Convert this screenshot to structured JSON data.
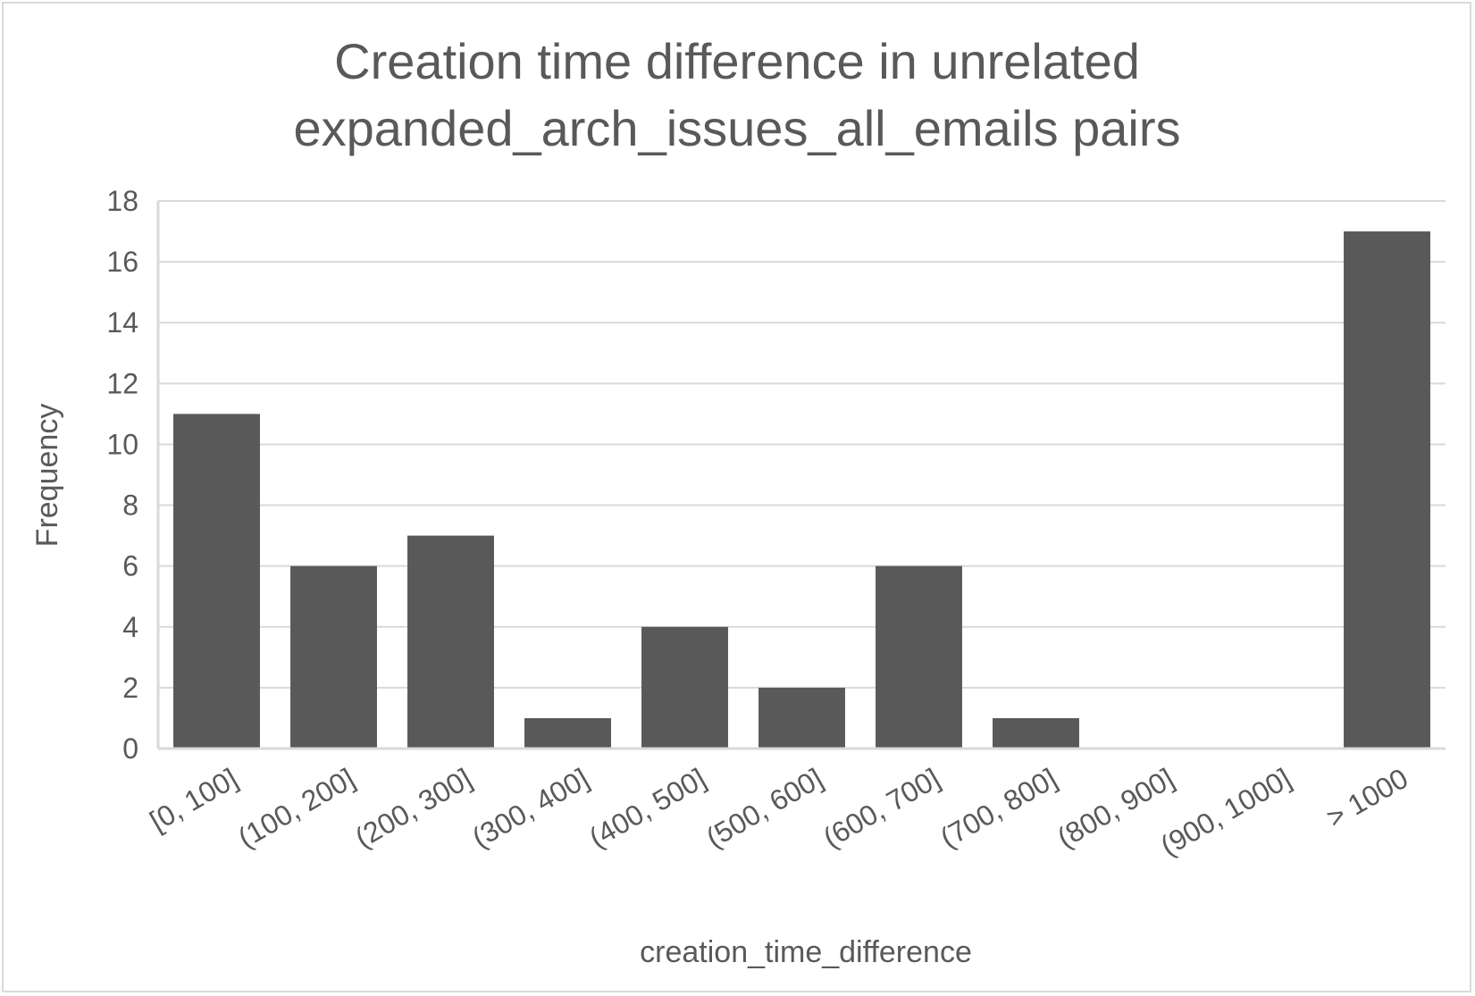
{
  "chart_data": {
    "type": "bar",
    "title_lines": [
      "Creation time difference in unrelated",
      "expanded_arch_issues_all_emails pairs"
    ],
    "xlabel": "creation_time_difference",
    "ylabel": "Frequency",
    "categories": [
      "[0, 100]",
      "(100, 200]",
      "(200, 300]",
      "(300, 400]",
      "(400, 500]",
      "(500, 600]",
      "(600, 700]",
      "(700, 800]",
      "(800, 900]",
      "(900, 1000]",
      "> 1000"
    ],
    "values": [
      11,
      6,
      7,
      1,
      4,
      2,
      6,
      1,
      0,
      0,
      17
    ],
    "ylim": [
      0,
      18
    ],
    "yticks": [
      0,
      2,
      4,
      6,
      8,
      10,
      12,
      14,
      16,
      18
    ],
    "grid": true,
    "legend": "none",
    "colors": {
      "bar": "#595959",
      "grid": "#d9d9d9",
      "text": "#595959"
    }
  }
}
